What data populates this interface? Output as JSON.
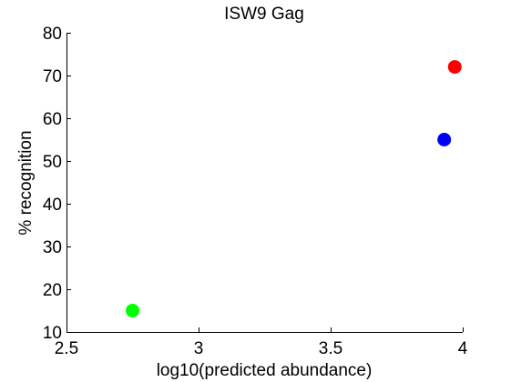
{
  "chart_data": {
    "type": "scatter",
    "title": "ISW9 Gag",
    "xlabel": "log10(predicted abundance)",
    "ylabel": "% recognition",
    "xlim": [
      2.5,
      4
    ],
    "ylim": [
      10,
      80
    ],
    "x_ticks": [
      2.5,
      3,
      3.5,
      4
    ],
    "x_tick_labels": [
      "2.5",
      "3",
      "3.5",
      "4"
    ],
    "y_ticks": [
      10,
      20,
      30,
      40,
      50,
      60,
      70,
      80
    ],
    "y_tick_labels": [
      "10",
      "20",
      "30",
      "40",
      "50",
      "60",
      "70",
      "80"
    ],
    "grid": false,
    "legend": "none",
    "points": [
      {
        "x": 2.75,
        "y": 15,
        "color": "#00ff00"
      },
      {
        "x": 3.93,
        "y": 55,
        "color": "#0000ff"
      },
      {
        "x": 3.97,
        "y": 72,
        "color": "#ff0000"
      }
    ]
  }
}
